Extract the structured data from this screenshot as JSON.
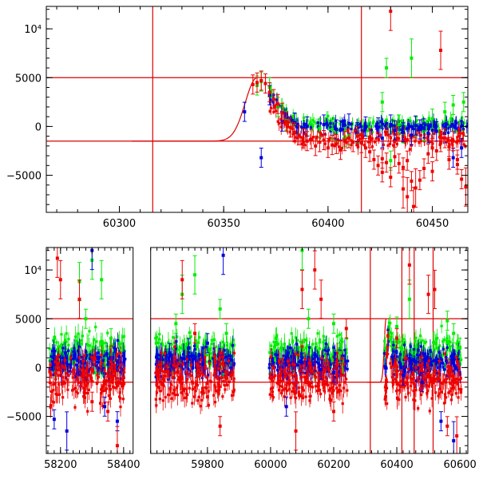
{
  "colors": {
    "green": "#00ee00",
    "blue": "#0000dd",
    "red": "#ee0000",
    "refline": "#dd0000",
    "axis": "#000000"
  },
  "chart_data": [
    {
      "type": "scatter",
      "panel": "top",
      "xlim": [
        60265,
        60467
      ],
      "ylim": [
        -8800,
        12300
      ],
      "x_ticks": [
        60300,
        60350,
        60400,
        60450
      ],
      "x_tick_labels": [
        "60300",
        "60350",
        "60400",
        "60450"
      ],
      "y_ticks": [
        -5000,
        0,
        5000,
        10000
      ],
      "y_tick_labels": [
        "−5000",
        "0",
        "5000",
        "10⁴"
      ],
      "hlines": [
        5000,
        -1500
      ],
      "vlines": [
        60316,
        60416
      ],
      "model_curve": {
        "peak_x": 60366,
        "peak_y": 5000,
        "baseline_y": -1500,
        "rise_width": 8,
        "decay_to_x": 60380
      },
      "series": [
        {
          "color": "green",
          "points": [
            [
              60366,
              4200
            ],
            [
              60368,
              4600
            ],
            [
              60372,
              4000
            ],
            [
              60376,
              2000
            ],
            [
              60380,
              600
            ],
            [
              60384,
              300
            ],
            [
              60390,
              0
            ],
            [
              60396,
              -200
            ],
            [
              60402,
              -300
            ],
            [
              60408,
              -1100
            ],
            [
              60414,
              -700
            ],
            [
              60420,
              -100
            ],
            [
              60426,
              2500
            ],
            [
              60428,
              6000
            ],
            [
              60430,
              -3500
            ],
            [
              60436,
              -700
            ],
            [
              60440,
              7000
            ],
            [
              60446,
              -500
            ],
            [
              60450,
              800
            ],
            [
              60456,
              1500
            ],
            [
              60460,
              2200
            ],
            [
              60465,
              2500
            ],
            [
              60442,
              0
            ],
            [
              60434,
              200
            ],
            [
              60410,
              -900
            ],
            [
              60404,
              -600
            ]
          ]
        },
        {
          "color": "blue",
          "points": [
            [
              60360,
              1500
            ],
            [
              60368,
              -3200
            ],
            [
              60372,
              3200
            ],
            [
              60378,
              500
            ],
            [
              60384,
              400
            ],
            [
              60390,
              0
            ],
            [
              60398,
              200
            ],
            [
              60404,
              -300
            ],
            [
              60410,
              300
            ],
            [
              60418,
              0
            ],
            [
              60424,
              -100
            ],
            [
              60430,
              200
            ],
            [
              60436,
              -600
            ],
            [
              60440,
              -900
            ],
            [
              60444,
              -300
            ],
            [
              60448,
              -700
            ],
            [
              60452,
              -500
            ],
            [
              60456,
              -700
            ],
            [
              60460,
              -3200
            ],
            [
              60464,
              -2200
            ],
            [
              60442,
              100
            ],
            [
              60446,
              -200
            ],
            [
              60432,
              -400
            ],
            [
              60426,
              -1200
            ],
            [
              60414,
              -600
            ],
            [
              60406,
              -400
            ]
          ]
        },
        {
          "color": "red",
          "points": [
            [
              60364,
              4300
            ],
            [
              60366,
              4500
            ],
            [
              60368,
              4700
            ],
            [
              60370,
              4400
            ],
            [
              60372,
              3500
            ],
            [
              60374,
              2800
            ],
            [
              60376,
              2300
            ],
            [
              60378,
              1400
            ],
            [
              60380,
              500
            ],
            [
              60382,
              -100
            ],
            [
              60384,
              -600
            ],
            [
              60386,
              -900
            ],
            [
              60388,
              -1200
            ],
            [
              60390,
              -1500
            ],
            [
              60392,
              -1300
            ],
            [
              60394,
              -2000
            ],
            [
              60396,
              -1600
            ],
            [
              60398,
              -1400
            ],
            [
              60400,
              -2200
            ],
            [
              60402,
              -1900
            ],
            [
              60404,
              -1800
            ],
            [
              60406,
              -2400
            ],
            [
              60408,
              -1500
            ],
            [
              60410,
              -1200
            ],
            [
              60412,
              -1600
            ],
            [
              60414,
              -1000
            ],
            [
              60416,
              -1700
            ],
            [
              60418,
              -2200
            ],
            [
              60420,
              -2600
            ],
            [
              60422,
              -3400
            ],
            [
              60424,
              -4000
            ],
            [
              60426,
              -4700
            ],
            [
              60428,
              -3700
            ],
            [
              60430,
              -5200
            ],
            [
              60432,
              -3100
            ],
            [
              60434,
              -3800
            ],
            [
              60436,
              -4200
            ],
            [
              60438,
              -3500
            ],
            [
              60440,
              -5600
            ],
            [
              60442,
              -6300
            ],
            [
              60444,
              -5500
            ],
            [
              60446,
              -4300
            ],
            [
              60448,
              -2800
            ],
            [
              60450,
              -2200
            ],
            [
              60452,
              -2500
            ],
            [
              60454,
              -1600
            ],
            [
              60456,
              -1200
            ],
            [
              60458,
              -2100
            ],
            [
              60460,
              -1500
            ],
            [
              60462,
              -3400
            ],
            [
              60464,
              -5400
            ],
            [
              60466,
              -6200
            ],
            [
              60430,
              11800
            ],
            [
              60441,
              -8200
            ],
            [
              60454,
              7800
            ],
            [
              60436,
              -6400
            ],
            [
              60438,
              -7200
            ],
            [
              60426,
              -3300
            ],
            [
              60420,
              -1200
            ],
            [
              60450,
              -4600
            ],
            [
              60458,
              -3400
            ],
            [
              60462,
              -3900
            ]
          ]
        }
      ]
    },
    {
      "type": "scatter",
      "panel": "bottom",
      "xlim": [
        58155,
        60625
      ],
      "ylim": [
        -8800,
        12300
      ],
      "axis_breaks": [
        [
          58430,
          59620
        ]
      ],
      "x_ticks": [
        58200,
        58300,
        58400,
        59800,
        60000,
        60200,
        60400,
        60600
      ],
      "x_tick_labels": [
        "58200",
        "",
        "58400",
        "59800",
        "60000",
        "60200",
        "60400",
        "60600"
      ],
      "y_ticks": [
        -5000,
        0,
        5000,
        10000
      ],
      "y_tick_labels": [
        "−5000",
        "0",
        "5000",
        "10⁴"
      ],
      "hlines": [
        5000,
        -1500
      ],
      "vlines": [
        60316,
        60416,
        60455,
        60515
      ],
      "model_curve": {
        "peak_x": 60366,
        "peak_y": 5000,
        "baseline_y": -1500,
        "rise_width": 8,
        "decay_to_x": 60380
      },
      "observing_seasons": [
        [
          58165,
          58405
        ],
        [
          59635,
          59885
        ],
        [
          59995,
          60245
        ],
        [
          60360,
          60605
        ]
      ],
      "series": [
        {
          "color": "green",
          "points": [
            [
              58260,
              8800
            ],
            [
              58280,
              5000
            ],
            [
              58300,
              11000
            ],
            [
              58330,
              9000
            ],
            [
              58360,
              3000
            ],
            [
              59700,
              4500
            ],
            [
              59720,
              7500
            ],
            [
              59760,
              9500
            ],
            [
              59840,
              6000
            ],
            [
              59860,
              3500
            ],
            [
              60100,
              12000
            ],
            [
              60120,
              5000
            ],
            [
              60200,
              4500
            ],
            [
              60220,
              1500
            ],
            [
              60400,
              4200
            ],
            [
              60440,
              7000
            ],
            [
              60560,
              4800
            ],
            [
              60580,
              3500
            ],
            [
              60600,
              2000
            ]
          ]
        },
        {
          "color": "blue",
          "points": [
            [
              58180,
              -5300
            ],
            [
              58220,
              -6500
            ],
            [
              58300,
              12000
            ],
            [
              58340,
              -4000
            ],
            [
              58380,
              -5500
            ],
            [
              59680,
              1500
            ],
            [
              59740,
              2000
            ],
            [
              59800,
              2500
            ],
            [
              59850,
              11500
            ],
            [
              60050,
              -4000
            ],
            [
              60100,
              500
            ],
            [
              60160,
              -200
            ],
            [
              60200,
              -500
            ],
            [
              60420,
              -800
            ],
            [
              60480,
              -1500
            ],
            [
              60540,
              -5500
            ],
            [
              60580,
              -7500
            ]
          ]
        },
        {
          "color": "red",
          "points": [
            [
              58190,
              11200
            ],
            [
              58200,
              9000
            ],
            [
              58260,
              7000
            ],
            [
              58300,
              -3500
            ],
            [
              58350,
              -4500
            ],
            [
              58380,
              -8000
            ],
            [
              59720,
              9000
            ],
            [
              59760,
              3500
            ],
            [
              59800,
              -3000
            ],
            [
              59840,
              -6000
            ],
            [
              60080,
              -6500
            ],
            [
              60100,
              8000
            ],
            [
              60140,
              10000
            ],
            [
              60160,
              7000
            ],
            [
              60200,
              -4500
            ],
            [
              60240,
              4000
            ],
            [
              60400,
              3000
            ],
            [
              60440,
              10500
            ],
            [
              60500,
              7500
            ],
            [
              60520,
              8000
            ],
            [
              60560,
              -6000
            ],
            [
              60590,
              -7000
            ]
          ]
        }
      ]
    }
  ]
}
